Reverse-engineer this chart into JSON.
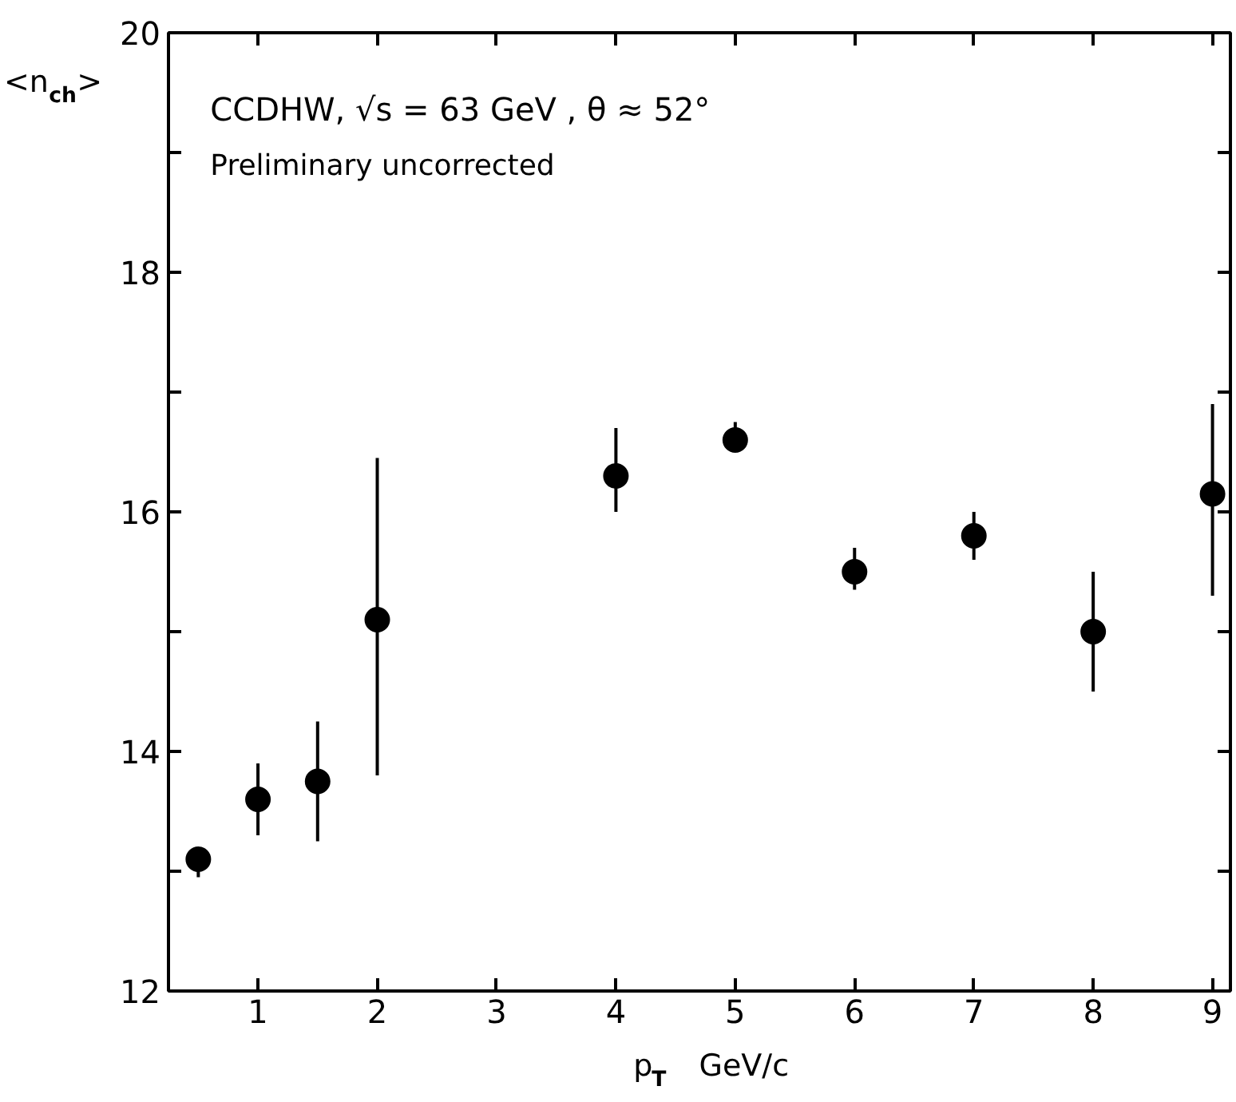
{
  "chart_data": {
    "type": "scatter",
    "xlabel": "p$_{T}$   GeV/c",
    "ylabel": "<n$_{ch}$>",
    "annotations": [
      "CCDHW,  √s = 63 GeV ,    θ ≈ 52°",
      "Preliminary   uncorrected"
    ],
    "x": [
      0.5,
      1,
      1.5,
      2,
      4,
      5,
      6,
      7,
      8,
      9
    ],
    "series": [
      {
        "color": "#000000",
        "values": [
          13.1,
          13.6,
          13.75,
          15.1,
          16.3,
          16.6,
          15.5,
          15.8,
          15.0,
          16.15
        ],
        "errors": [
          [
            12.95,
            13.2
          ],
          [
            13.3,
            13.9
          ],
          [
            13.25,
            14.25
          ],
          [
            13.8,
            16.45
          ],
          [
            16.0,
            16.7
          ],
          [
            16.5,
            16.75
          ],
          [
            15.35,
            15.7
          ],
          [
            15.6,
            16.0
          ],
          [
            14.5,
            15.5
          ],
          [
            15.3,
            16.9
          ]
        ]
      }
    ],
    "marker": "circle",
    "xlim": [
      0.25,
      9.15
    ],
    "ylim": [
      12,
      20
    ],
    "xticks": [
      1,
      2,
      3,
      4,
      5,
      6,
      7,
      8,
      9
    ],
    "yticks": [
      12,
      {
        "value": 13,
        "label": null
      },
      14,
      {
        "value": 15,
        "label": null
      },
      16,
      {
        "value": 17,
        "label": null
      },
      18,
      {
        "value": 19,
        "label": null
      },
      20
    ],
    "grid": false,
    "legend": false
  }
}
